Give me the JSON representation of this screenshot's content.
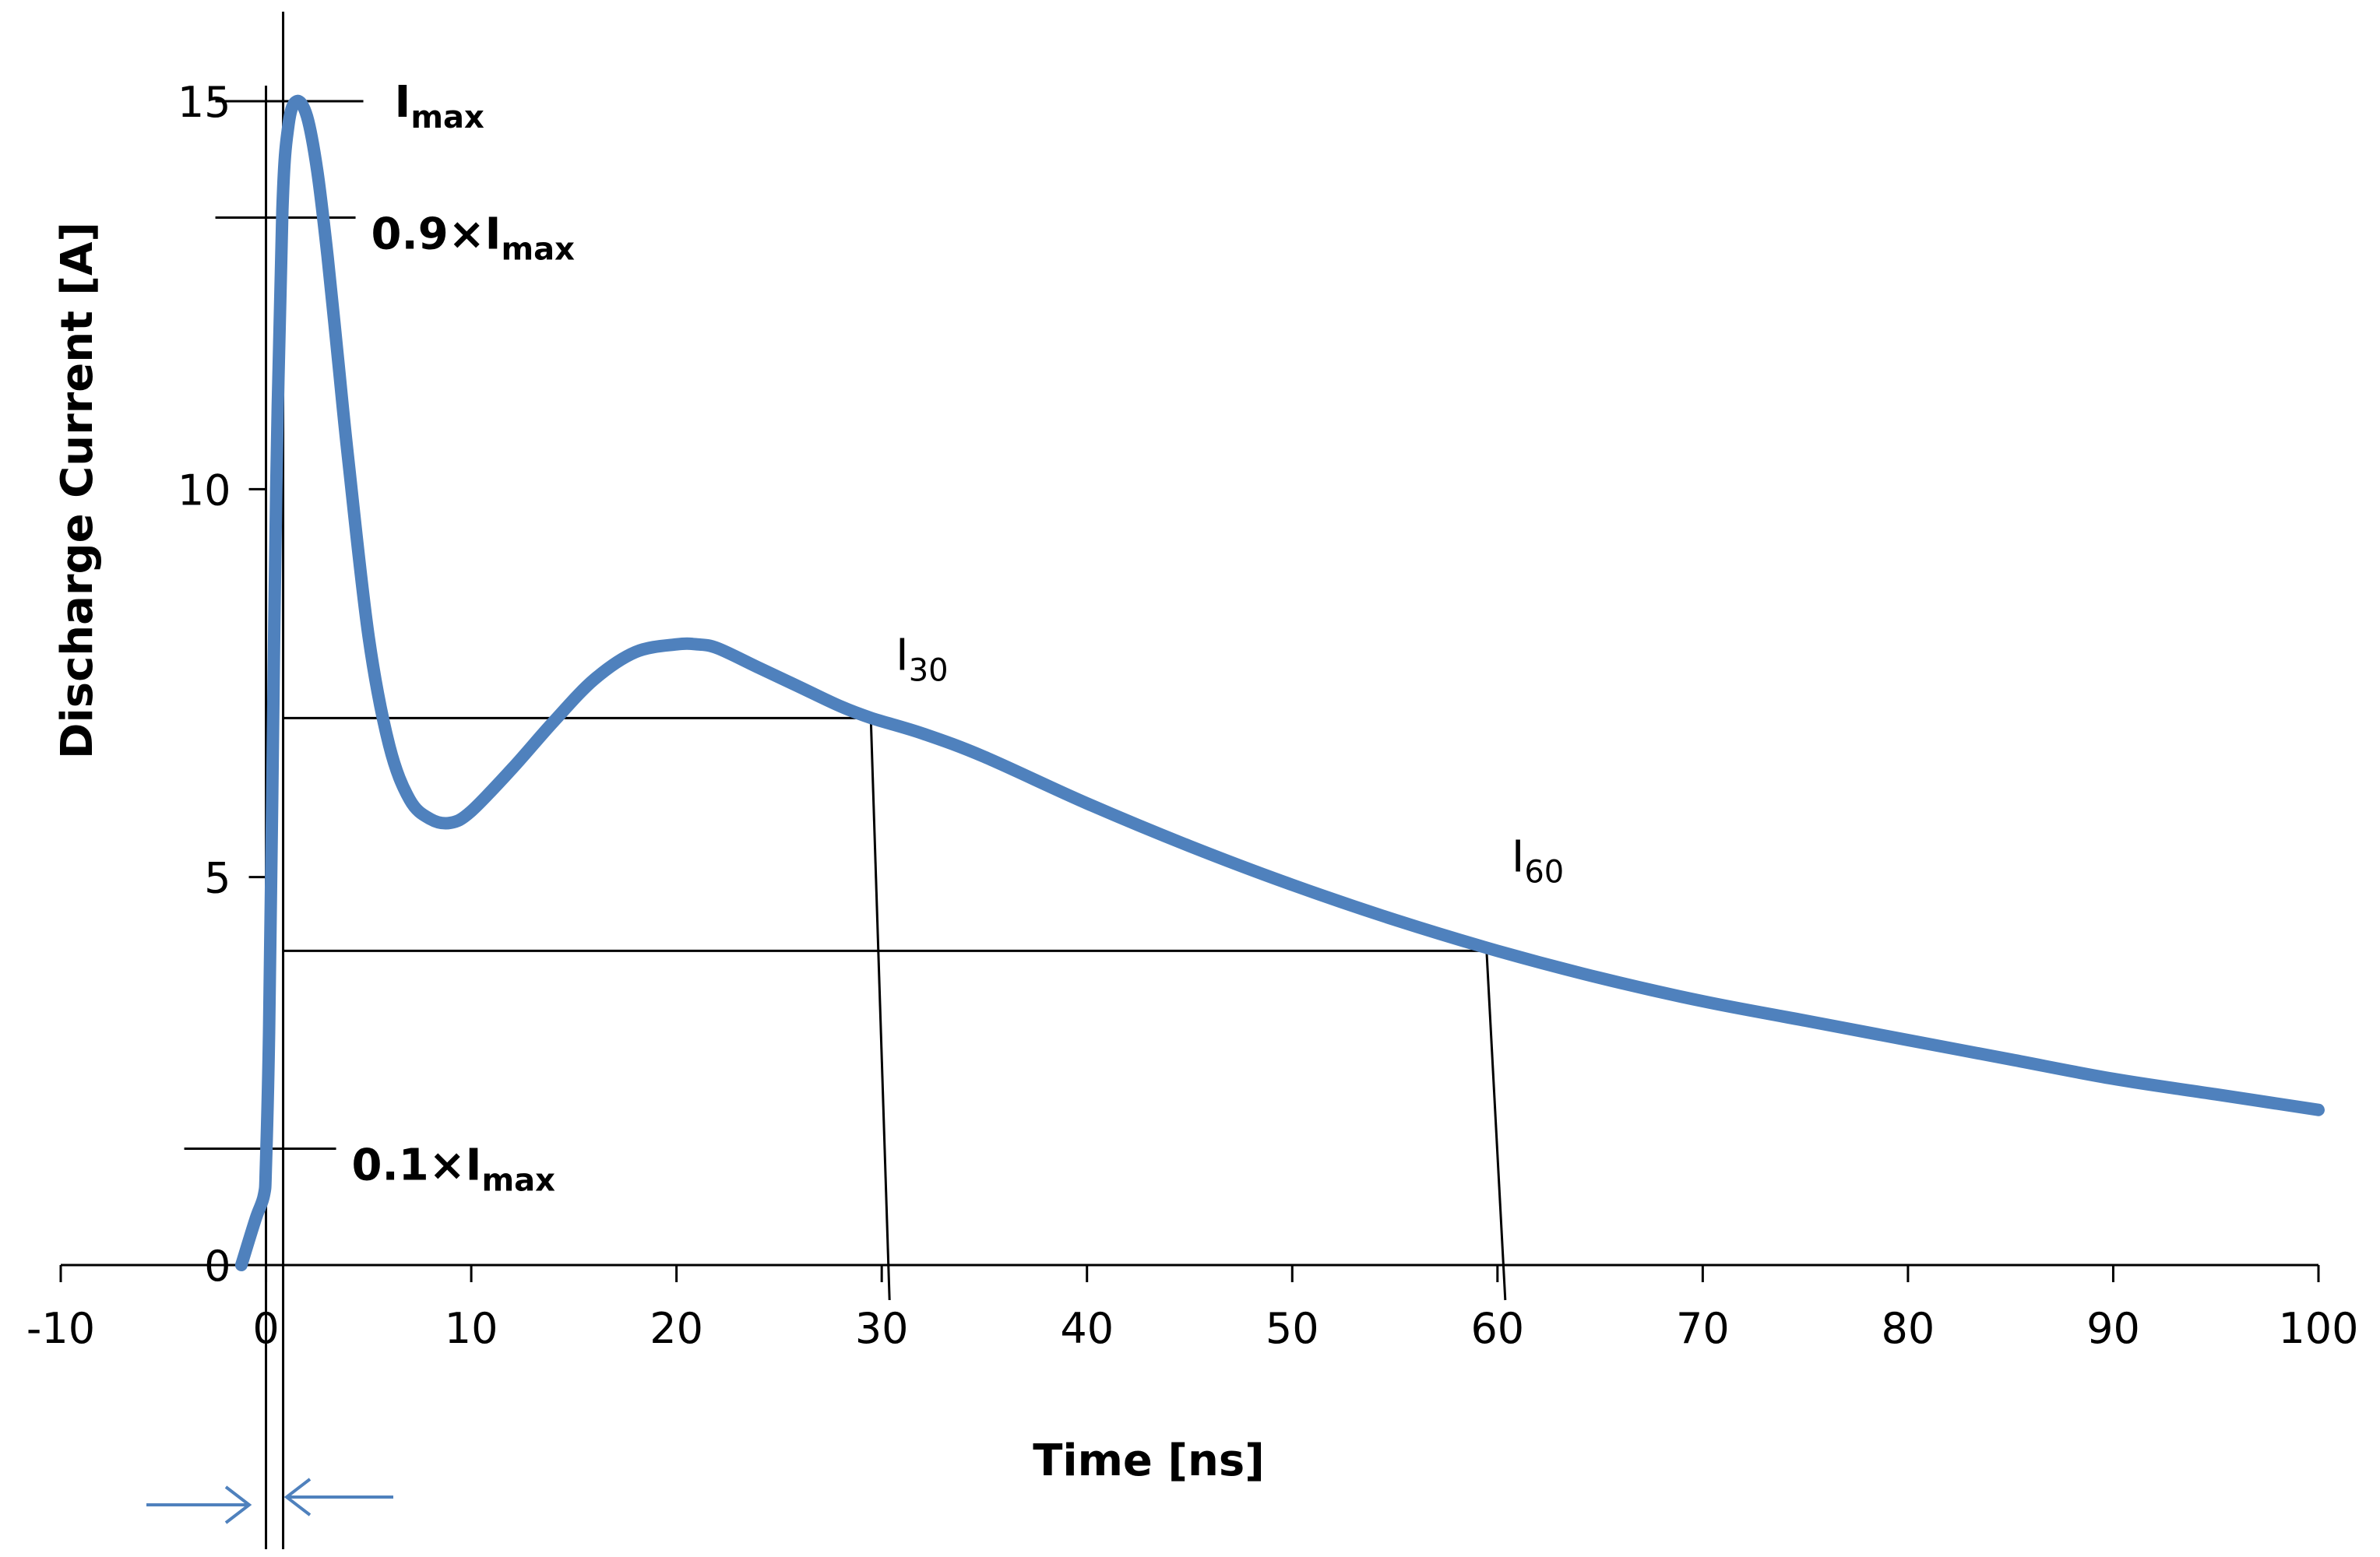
{
  "chart_data": {
    "type": "line",
    "xlabel": "Time [ns]",
    "ylabel": "Discharge Current [A]",
    "xlim": [
      -10,
      100
    ],
    "ylim": [
      0,
      15
    ],
    "x_ticks": [
      -10,
      0,
      10,
      20,
      30,
      40,
      50,
      60,
      70,
      80,
      90,
      100
    ],
    "y_ticks": [
      0,
      5,
      10,
      15
    ],
    "grid": false,
    "line_color": "#4F81BD",
    "series": [
      {
        "name": "Discharge Current",
        "x": [
          -1.2,
          -0.5,
          -0.1,
          0,
          0.15,
          0.3,
          0.5,
          0.8,
          1.1,
          1.5,
          2,
          2.5,
          3,
          3.5,
          4,
          5,
          6,
          7,
          8,
          9,
          10,
          12,
          14,
          16,
          18,
          20,
          21,
          22,
          24,
          26,
          28,
          29.5,
          32,
          35,
          40,
          45,
          50,
          55,
          60,
          65,
          70,
          75,
          80,
          85,
          90,
          95,
          100
        ],
        "y": [
          0,
          0.6,
          0.9,
          1.3,
          3.0,
          6.0,
          10.0,
          13.6,
          14.7,
          15.0,
          14.8,
          14.1,
          13.0,
          11.7,
          10.4,
          8.1,
          6.7,
          6.0,
          5.75,
          5.7,
          5.85,
          6.4,
          7.0,
          7.55,
          7.9,
          8.0,
          8.0,
          7.95,
          7.7,
          7.45,
          7.2,
          7.05,
          6.85,
          6.55,
          5.95,
          5.4,
          4.9,
          4.45,
          4.05,
          3.7,
          3.4,
          3.15,
          2.9,
          2.65,
          2.4,
          2.2,
          2.0
        ]
      }
    ],
    "annotations": [
      {
        "label": "I",
        "sub": "max",
        "value": 15,
        "bold": true
      },
      {
        "label": "0.9×I",
        "sub": "max",
        "value": 13.5,
        "bold": true
      },
      {
        "label": "0.1×I",
        "sub": "max",
        "value": 1.5,
        "bold": true
      },
      {
        "label": "I",
        "sub": "30",
        "time": 30,
        "value": 7.05,
        "bold": false
      },
      {
        "label": "I",
        "sub": "60",
        "time": 60,
        "value": 4.05,
        "bold": false
      }
    ]
  }
}
